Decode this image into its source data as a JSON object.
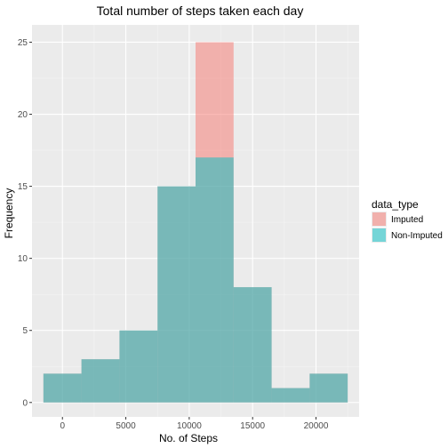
{
  "chart_data": {
    "type": "bar",
    "title": "Total number of steps taken each day",
    "xlabel": "No. of Steps",
    "ylabel": "Frequency",
    "xlim": [
      -2400,
      23400
    ],
    "ylim": [
      -1,
      26.2
    ],
    "x_ticks": [
      "0",
      "5000",
      "10000",
      "15000",
      "20000"
    ],
    "x_tick_values": [
      0,
      5000,
      10000,
      15000,
      20000
    ],
    "y_ticks": [
      "0",
      "5",
      "10",
      "15",
      "20",
      "25"
    ],
    "y_tick_values": [
      0,
      5,
      10,
      15,
      20,
      25
    ],
    "bin_edges": [
      -1500,
      1500,
      4500,
      7500,
      10500,
      13500,
      16500,
      19500,
      22500
    ],
    "overlay": true,
    "series": [
      {
        "name": "Imputed",
        "color": "#f8766d",
        "values": [
          2,
          3,
          5,
          15,
          25,
          8,
          1,
          2
        ]
      },
      {
        "name": "Non-Imputed",
        "color": "#00bfc4",
        "values": [
          2,
          3,
          5,
          15,
          17,
          8,
          1,
          2
        ]
      }
    ],
    "legend": {
      "title": "data_type",
      "position": "right"
    },
    "grid": true,
    "panel_background": "#ebebeb"
  }
}
